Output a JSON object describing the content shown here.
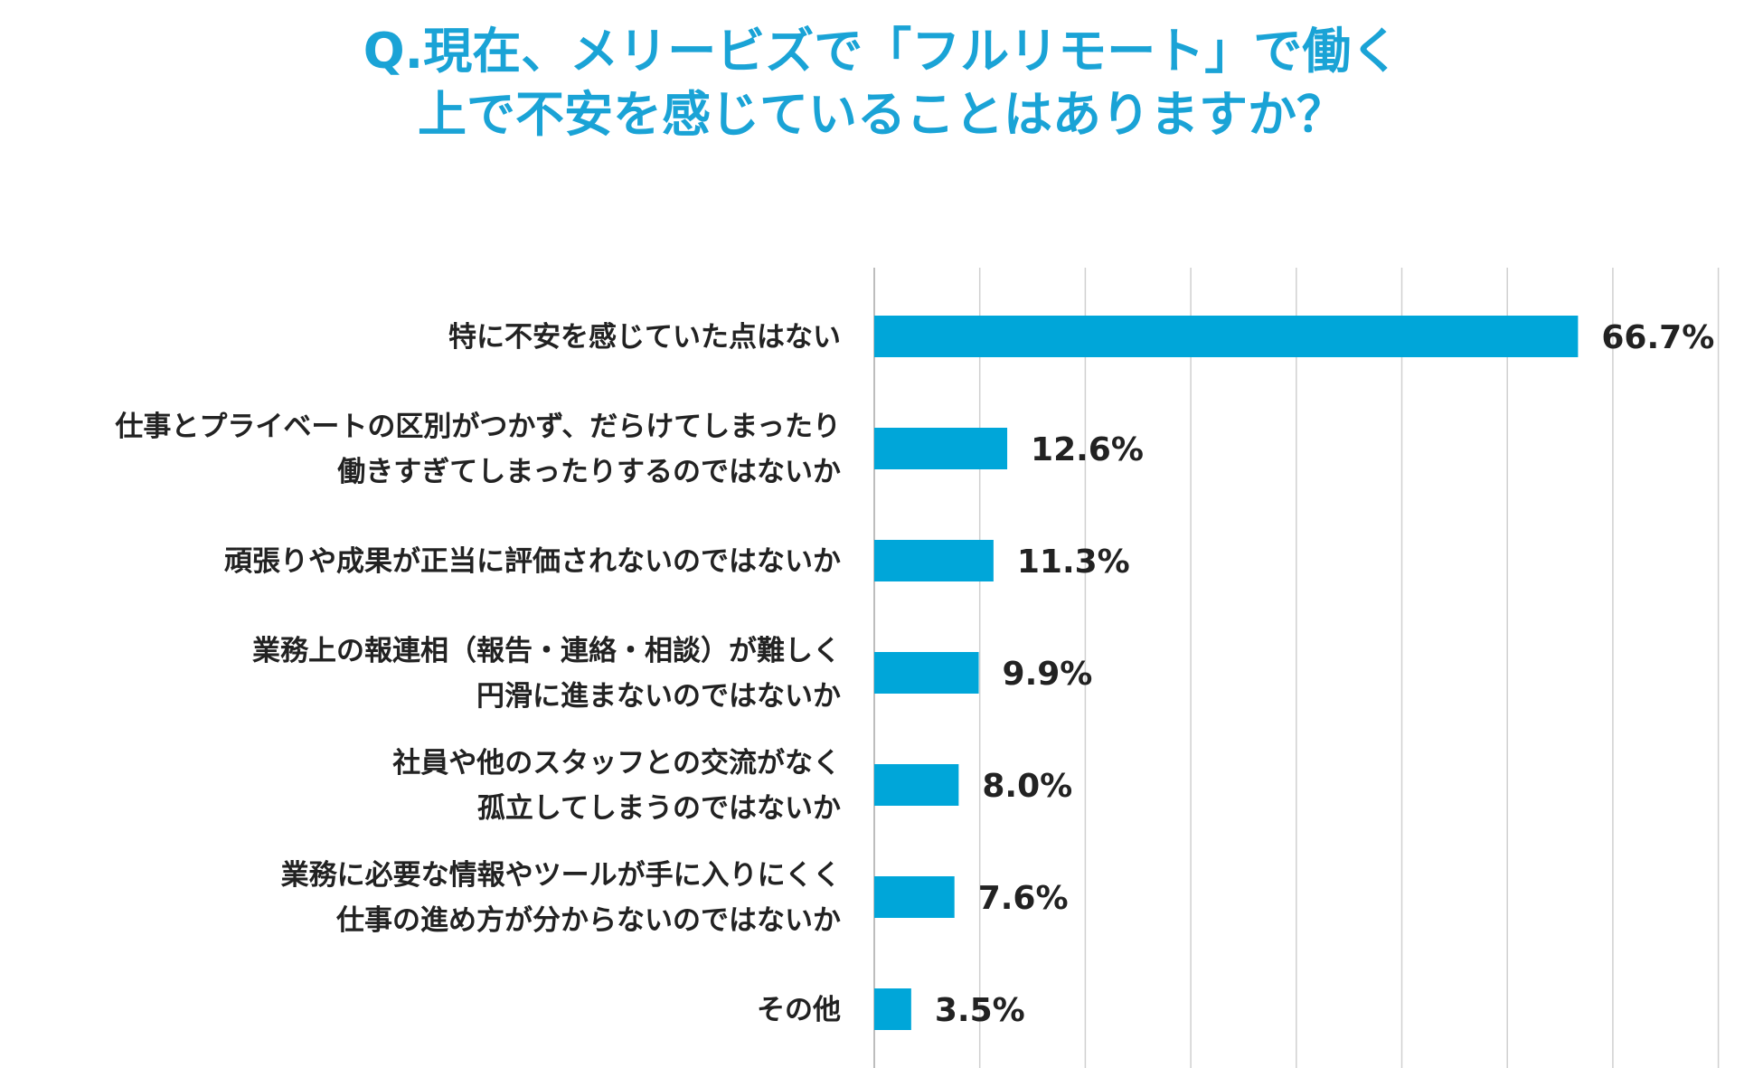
{
  "chart_data": {
    "type": "bar",
    "orientation": "horizontal",
    "title_lines": [
      "Q.現在、メリービズで「フルリモート」で働く",
      "上で不安を感じていることはありますか？"
    ],
    "categories": [
      [
        "特に不安を感じていた点はない"
      ],
      [
        "仕事とプライベートの区別がつかず、だらけてしまったり",
        "働きすぎてしまったりするのではないか"
      ],
      [
        "頑張りや成果が正当に評価されないのではないか"
      ],
      [
        "業務上の報連相（報告・連絡・相談）が難しく",
        "円滑に進まないのではないか"
      ],
      [
        "社員や他のスタッフとの交流がなく",
        "孤立してしまうのではないか"
      ],
      [
        "業務に必要な情報やツールが手に入りにくく",
        "仕事の進め方が分からないのではないか"
      ],
      [
        "その他"
      ]
    ],
    "values": [
      66.7,
      12.6,
      11.3,
      9.9,
      8.0,
      7.6,
      3.5
    ],
    "value_labels": [
      "66.7%",
      "12.6%",
      "11.3%",
      "9.9%",
      "8.0%",
      "7.6%",
      "3.5%"
    ],
    "xlim": [
      0,
      80
    ],
    "grid": true,
    "bar_color": "#00a6d9",
    "title_color": "#1aa3d6",
    "grid_color": "#d0d0d0"
  }
}
